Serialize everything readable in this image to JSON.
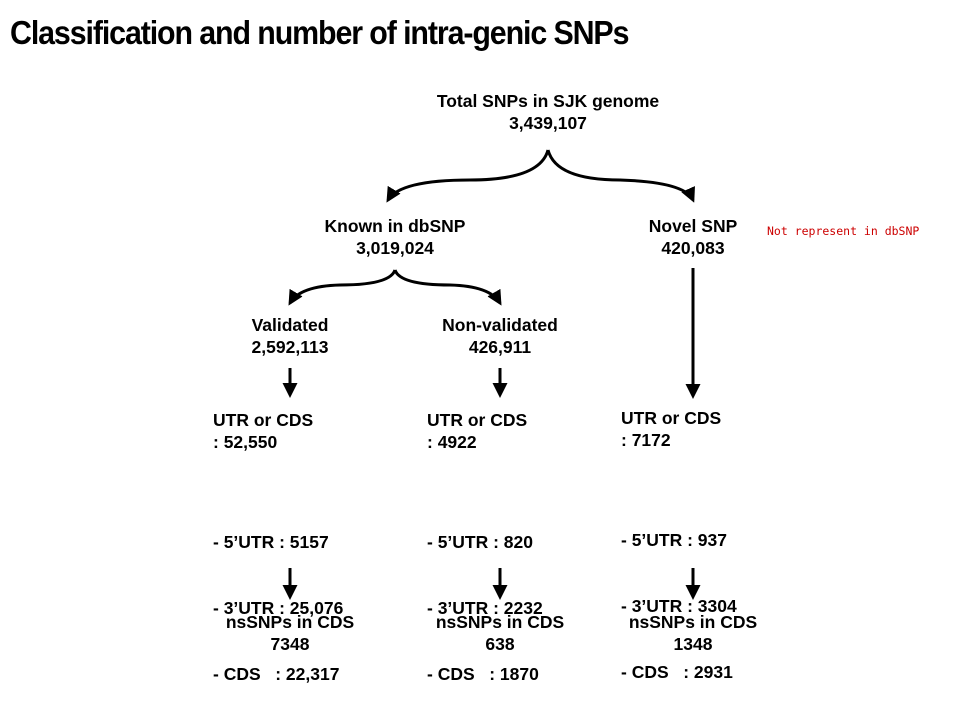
{
  "title": "Classification and number of intra-genic SNPs",
  "root": {
    "label": "Total SNPs in SJK genome",
    "count": "3,439,107"
  },
  "known": {
    "label": "Known in dbSNP",
    "count": "3,019,024"
  },
  "novel": {
    "label": "Novel SNP",
    "count": "420,083",
    "note": "Not represent in dbSNP"
  },
  "columns": [
    {
      "label": "Validated",
      "count": "2,592,113",
      "utr_cds_label": "UTR or CDS",
      "utr_cds_count": ": 52,550",
      "breakdown": [
        "- 5’UTR : 5157",
        "- 3’UTR : 25,076",
        "- CDS   : 22,317"
      ],
      "ns_label": "nsSNPs in CDS",
      "ns_count": "7348"
    },
    {
      "label": "Non-validated",
      "count": "426,911",
      "utr_cds_label": "UTR or CDS",
      "utr_cds_count": ": 4922",
      "breakdown": [
        "- 5’UTR : 820",
        "- 3’UTR : 2232",
        "- CDS   : 1870"
      ],
      "ns_label": "nsSNPs in CDS",
      "ns_count": "638"
    },
    {
      "utr_cds_label": "UTR or CDS",
      "utr_cds_count": ": 7172",
      "breakdown": [
        "- 5’UTR : 937",
        "- 3’UTR : 3304",
        "- CDS   : 2931"
      ],
      "ns_label": "nsSNPs in CDS",
      "ns_count": "1348"
    }
  ]
}
